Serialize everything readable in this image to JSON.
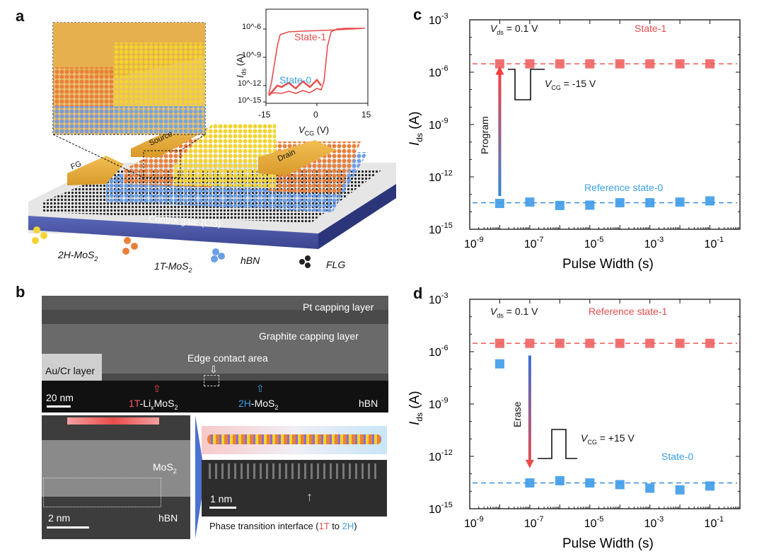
{
  "panels": {
    "a": {
      "label": "a",
      "inset": {
        "ylabel_main": "I",
        "ylabel_sub": "ds",
        "ylabel_unit": " (A)",
        "xlabel_main": "V",
        "xlabel_sub": "CG",
        "xlabel_unit": " (V)",
        "y_ticks": [
          "10^-6",
          "10^-9",
          "10^-12",
          "10^-15"
        ],
        "x_ticks": [
          "-15",
          "0",
          "15"
        ],
        "state1": "State-1",
        "state0": "State-0"
      },
      "device_labels": {
        "fg": "FG",
        "source": "Source",
        "drain": "Drain",
        "control_gate": "Control gate (CG)"
      },
      "legend": {
        "mos2_2h": "2H-MoS",
        "mos2_1t": "1T-MoS",
        "sub2": "2",
        "hbn": "hBN",
        "flg": "FLG"
      }
    },
    "b": {
      "label": "b",
      "labels": {
        "pt": "Pt capping layer",
        "graphite": "Graphite capping layer",
        "aucr": "Au/Cr layer",
        "edge": "Edge contact area",
        "scale20": "20 nm",
        "t1_prefix": "1T",
        "t1_mid": "-Li",
        "t1_x": "x",
        "t1_suffix": "MoS",
        "t1_2": "2",
        "h2_prefix": "2H",
        "h2_suffix": "-MoS",
        "h2_2": "2",
        "hbn_top": "hBN",
        "mos2": "MoS",
        "mos2_sub": "2",
        "hbn_bottom": "hBN",
        "scale2": "2 nm",
        "scale1": "1 nm",
        "phase_pre": "Phase transition interface (",
        "phase_1t": "1T",
        "phase_to": " to ",
        "phase_2h": "2H",
        "phase_post": ")"
      }
    },
    "c": {
      "label": "c",
      "vds_label": "= 0.1 V",
      "state1_label": "State-1",
      "state0_label": "Reference state-0",
      "vcg_label": "= -15 V",
      "arrow_label": "Program"
    },
    "d": {
      "label": "d",
      "vds_label": "= 0.1 V",
      "state1_label": "Reference state-1",
      "state0_label": "State-0",
      "vcg_label": "= +15 V",
      "arrow_label": "Erase"
    }
  },
  "axis_text": {
    "xlabel": "Pulse Width (s)",
    "ylabel_main": "I",
    "ylabel_sub": "ds",
    "ylabel_unit": " (A)",
    "v_main": "V",
    "vds_sub": "ds",
    "vcg_sub": "CG"
  },
  "colors": {
    "red": "#e84c4c",
    "red_fill": "#f06262",
    "blue": "#2f86d6",
    "blue_fill": "#3d9be9",
    "cyan_text": "#3aa0e8"
  },
  "chart_data": [
    {
      "id": "c",
      "type": "scatter",
      "x_scale": "log",
      "y_scale": "log",
      "xlim": [
        1e-09,
        1
      ],
      "ylim": [
        1e-15,
        0.001
      ],
      "x_ticks": [
        "10^-9",
        "10^-7",
        "10^-5",
        "10^-3",
        "10^-1"
      ],
      "y_ticks": [
        "10^-3",
        "10^-6",
        "10^-9",
        "10^-12",
        "10^-15"
      ],
      "xlabel": "Pulse Width (s)",
      "ylabel": "Ids (A)",
      "series": [
        {
          "name": "State-1",
          "color": "#e84c4c",
          "x": [
            1e-08,
            1e-07,
            1e-06,
            1e-05,
            0.0001,
            0.001,
            0.01,
            0.1
          ],
          "y": [
            3e-06,
            3e-06,
            3e-06,
            3e-06,
            3e-06,
            3e-06,
            3e-06,
            3e-06
          ],
          "reference_line": 3e-06
        },
        {
          "name": "Reference state-0",
          "color": "#2f86d6",
          "x": [
            1e-08,
            1e-07,
            1e-06,
            1e-05,
            0.0001,
            0.001,
            0.01,
            0.1
          ],
          "y": [
            3e-14,
            3.6e-14,
            2.3e-14,
            2.4e-14,
            3.3e-14,
            3.3e-14,
            3.6e-14,
            4.2e-14
          ],
          "reference_line": 3.3e-14
        }
      ]
    },
    {
      "id": "d",
      "type": "scatter",
      "x_scale": "log",
      "y_scale": "log",
      "xlim": [
        1e-09,
        1
      ],
      "ylim": [
        1e-15,
        0.001
      ],
      "x_ticks": [
        "10^-9",
        "10^-7",
        "10^-5",
        "10^-3",
        "10^-1"
      ],
      "y_ticks": [
        "10^-3",
        "10^-6",
        "10^-9",
        "10^-12",
        "10^-15"
      ],
      "xlabel": "Pulse Width (s)",
      "ylabel": "Ids (A)",
      "series": [
        {
          "name": "Reference state-1",
          "color": "#e84c4c",
          "x": [
            1e-08,
            1e-07,
            1e-06,
            1e-05,
            0.0001,
            0.001,
            0.01,
            0.1
          ],
          "y": [
            3e-06,
            3e-06,
            3e-06,
            3e-06,
            3e-06,
            3e-06,
            3e-06,
            3e-06
          ],
          "reference_line": 3e-06
        },
        {
          "name": "State-0",
          "color": "#2f86d6",
          "x": [
            1e-08,
            1e-07,
            1e-06,
            1e-05,
            0.0001,
            0.001,
            0.01,
            0.1
          ],
          "y": [
            2e-07,
            3e-14,
            4e-14,
            3e-14,
            2.4e-14,
            1.5e-14,
            1.2e-14,
            2e-14
          ],
          "reference_line": 3e-14
        }
      ]
    }
  ]
}
